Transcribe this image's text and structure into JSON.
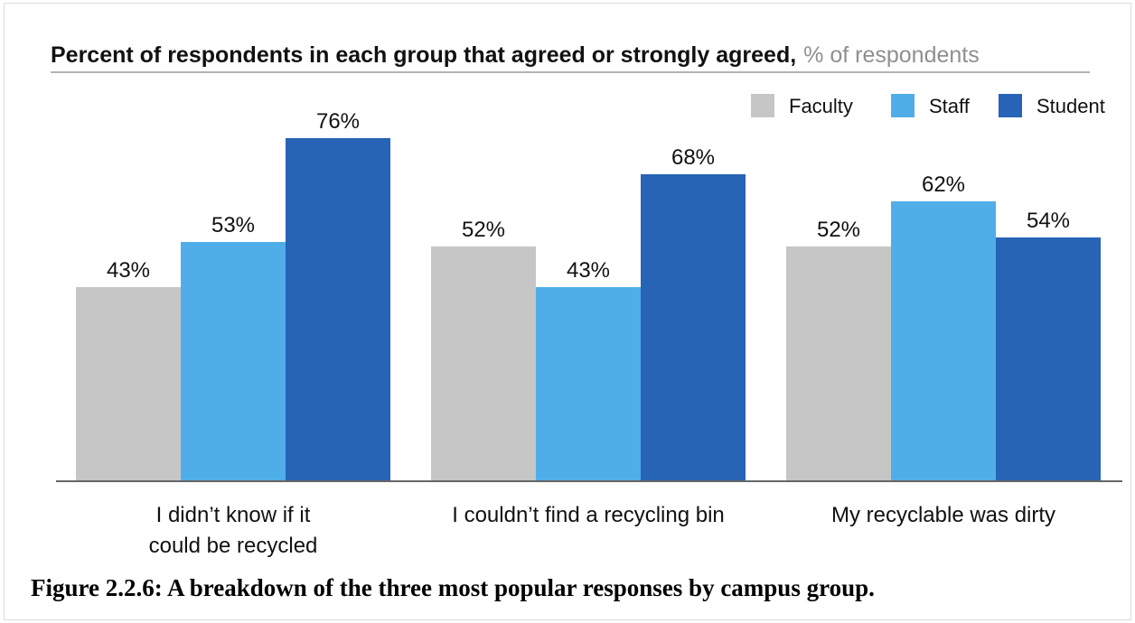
{
  "chart_data": {
    "type": "bar",
    "title": "Percent of respondents in each group that agreed or strongly agreed,",
    "subtitle": "% of respondents",
    "categories": [
      [
        "I didn’t know if it",
        "could be recycled"
      ],
      [
        "I couldn’t find a recycling bin"
      ],
      [
        "My recyclable was dirty"
      ]
    ],
    "series": [
      {
        "name": "Faculty",
        "color": "#c6c6c6",
        "values": [
          43,
          52,
          52
        ],
        "labels": [
          "43%",
          "52%",
          "52%"
        ]
      },
      {
        "name": "Staff",
        "color": "#4faee8",
        "values": [
          53,
          43,
          62
        ],
        "labels": [
          "53%",
          "43%",
          "62%"
        ]
      },
      {
        "name": "Student",
        "color": "#2764b5",
        "values": [
          76,
          68,
          54
        ],
        "labels": [
          "76%",
          "68%",
          "54%"
        ]
      }
    ],
    "ylim": [
      0,
      100
    ],
    "grid": false,
    "legend_position": "top-right"
  },
  "caption": "Figure 2.2.6: A breakdown of the three most popular responses by campus group."
}
